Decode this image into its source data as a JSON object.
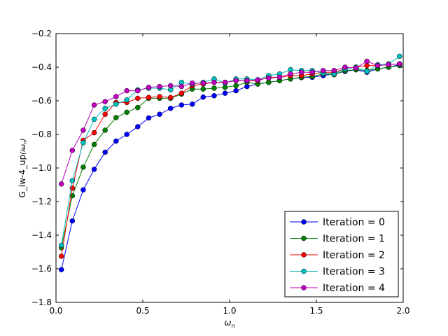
{
  "chart_data": {
    "type": "line",
    "title": "",
    "xlabel": "ω_n",
    "ylabel_prefix": "G_iw-4_up",
    "ylabel_suffix": "(iω_n)",
    "xlim": [
      0.0,
      2.0
    ],
    "ylim": [
      -1.8,
      -0.2
    ],
    "xticks": [
      0.0,
      0.5,
      1.0,
      1.5,
      2.0
    ],
    "xtick_labels": [
      "0.0",
      "0.5",
      "1.0",
      "1.5",
      "2.0"
    ],
    "yticks": [
      -1.8,
      -1.6,
      -1.4,
      -1.2,
      -1.0,
      -0.8,
      -0.6,
      -0.4,
      -0.2
    ],
    "ytick_labels": [
      "−1.8",
      "−1.6",
      "−1.4",
      "−1.2",
      "−1.0",
      "−0.8",
      "−0.6",
      "−0.4",
      "−0.2"
    ],
    "grid": false,
    "legend_position": "lower-right",
    "x": [
      0.031,
      0.094,
      0.157,
      0.22,
      0.283,
      0.346,
      0.408,
      0.471,
      0.534,
      0.597,
      0.66,
      0.723,
      0.785,
      0.848,
      0.911,
      0.974,
      1.037,
      1.1,
      1.162,
      1.225,
      1.288,
      1.351,
      1.414,
      1.476,
      1.539,
      1.602,
      1.665,
      1.728,
      1.791,
      1.853,
      1.916,
      1.979
    ],
    "series": [
      {
        "name": "Iteration = 0",
        "color": "#0000ff",
        "values": [
          -1.605,
          -1.315,
          -1.13,
          -1.008,
          -0.906,
          -0.84,
          -0.8,
          -0.754,
          -0.702,
          -0.68,
          -0.645,
          -0.625,
          -0.62,
          -0.578,
          -0.57,
          -0.555,
          -0.54,
          -0.515,
          -0.5,
          -0.49,
          -0.48,
          -0.47,
          -0.462,
          -0.46,
          -0.45,
          -0.44,
          -0.425,
          -0.415,
          -0.43,
          -0.41,
          -0.4,
          -0.385
        ]
      },
      {
        "name": "Iteration = 1",
        "color": "#008000",
        "values": [
          -1.475,
          -1.165,
          -0.995,
          -0.86,
          -0.775,
          -0.7,
          -0.668,
          -0.64,
          -0.585,
          -0.585,
          -0.585,
          -0.56,
          -0.53,
          -0.53,
          -0.525,
          -0.52,
          -0.51,
          -0.49,
          -0.5,
          -0.49,
          -0.48,
          -0.47,
          -0.46,
          -0.455,
          -0.44,
          -0.445,
          -0.42,
          -0.415,
          -0.42,
          -0.41,
          -0.4,
          -0.39
        ]
      },
      {
        "name": "Iteration = 2",
        "color": "#ff0000",
        "values": [
          -1.525,
          -1.12,
          -0.835,
          -0.79,
          -0.68,
          -0.61,
          -0.61,
          -0.585,
          -0.58,
          -0.575,
          -0.58,
          -0.555,
          -0.51,
          -0.5,
          -0.49,
          -0.49,
          -0.48,
          -0.48,
          -0.48,
          -0.46,
          -0.46,
          -0.45,
          -0.45,
          -0.44,
          -0.43,
          -0.43,
          -0.41,
          -0.4,
          -0.39,
          -0.39,
          -0.385,
          -0.38
        ]
      },
      {
        "name": "Iteration = 3",
        "color": "#00bfbf",
        "values": [
          -1.46,
          -1.075,
          -0.85,
          -0.71,
          -0.645,
          -0.62,
          -0.595,
          -0.535,
          -0.525,
          -0.525,
          -0.535,
          -0.49,
          -0.5,
          -0.49,
          -0.47,
          -0.495,
          -0.47,
          -0.47,
          -0.475,
          -0.45,
          -0.44,
          -0.415,
          -0.42,
          -0.42,
          -0.435,
          -0.44,
          -0.41,
          -0.4,
          -0.425,
          -0.385,
          -0.38,
          -0.335
        ]
      },
      {
        "name": "Iteration = 4",
        "color": "#bf00bf",
        "values": [
          -1.095,
          -0.895,
          -0.775,
          -0.625,
          -0.605,
          -0.575,
          -0.54,
          -0.54,
          -0.52,
          -0.515,
          -0.51,
          -0.515,
          -0.495,
          -0.495,
          -0.49,
          -0.49,
          -0.48,
          -0.48,
          -0.475,
          -0.465,
          -0.46,
          -0.44,
          -0.43,
          -0.43,
          -0.42,
          -0.42,
          -0.4,
          -0.405,
          -0.365,
          -0.39,
          -0.385,
          -0.38
        ]
      }
    ]
  }
}
